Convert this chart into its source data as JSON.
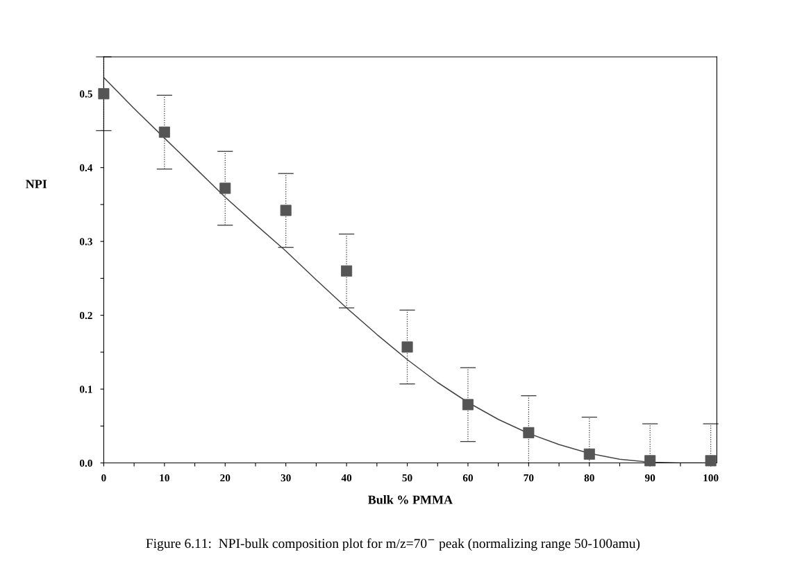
{
  "chart_data": {
    "type": "scatter",
    "xlabel": "Bulk % PMMA",
    "ylabel": "NPI",
    "annotations": [
      "Figure 6.11:  NPI-bulk composition plot for m/z=70$^{−}$ peak (normalizing range 50-100amu)"
    ],
    "x": [
      0,
      10,
      20,
      30,
      40,
      50,
      60,
      70,
      80,
      90,
      100
    ],
    "series": [
      {
        "color": "#555555",
        "marker": "square",
        "values": [
          0.5,
          0.448,
          0.372,
          0.342,
          0.26,
          0.157,
          0.079,
          0.041,
          0.012,
          0.003,
          0.003
        ],
        "errors": [
          0.05,
          0.05,
          0.05,
          0.05,
          0.05,
          0.05,
          0.05,
          [
            0,
            0.091
          ],
          [
            0,
            0.062
          ],
          [
            0.003,
            0.053
          ],
          [
            0.003,
            0.053
          ]
        ]
      },
      {
        "type": "line",
        "color": "#444444",
        "marker": "none",
        "line_style": "solid",
        "x": [
          0,
          5,
          10,
          15,
          20,
          25,
          30,
          35,
          40,
          45,
          50,
          55,
          60,
          65,
          70,
          75,
          80,
          85,
          90,
          95,
          100
        ],
        "values": [
          0.522,
          0.48,
          0.44,
          0.4,
          0.36,
          0.323,
          0.287,
          0.248,
          0.21,
          0.174,
          0.14,
          0.109,
          0.082,
          0.059,
          0.04,
          0.025,
          0.013,
          0.005,
          0.001,
          0.0,
          0.0
        ]
      }
    ],
    "xlim": [
      0,
      101
    ],
    "ylim": [
      0,
      0.55
    ],
    "xticks": [
      0,
      {
        "value": 5,
        "label": null
      },
      10,
      {
        "value": 15,
        "label": null
      },
      20,
      {
        "value": 25,
        "label": null
      },
      30,
      {
        "value": 35,
        "label": null
      },
      40,
      {
        "value": 45,
        "label": null
      },
      50,
      {
        "value": 55,
        "label": null
      },
      60,
      {
        "value": 65,
        "label": null
      },
      70,
      {
        "value": 75,
        "label": null
      },
      80,
      {
        "value": 85,
        "label": null
      },
      90,
      {
        "value": 95,
        "label": null
      },
      100
    ],
    "yticks": [
      {
        "value": 0,
        "label": "0.0"
      },
      {
        "value": 0.05,
        "label": null
      },
      0.1,
      {
        "value": 0.15,
        "label": null
      },
      0.2,
      {
        "value": 0.25,
        "label": null
      },
      0.3,
      {
        "value": 0.35,
        "label": null
      },
      0.4,
      {
        "value": 0.45,
        "label": null
      },
      0.5
    ],
    "grid": false,
    "legend": false
  }
}
